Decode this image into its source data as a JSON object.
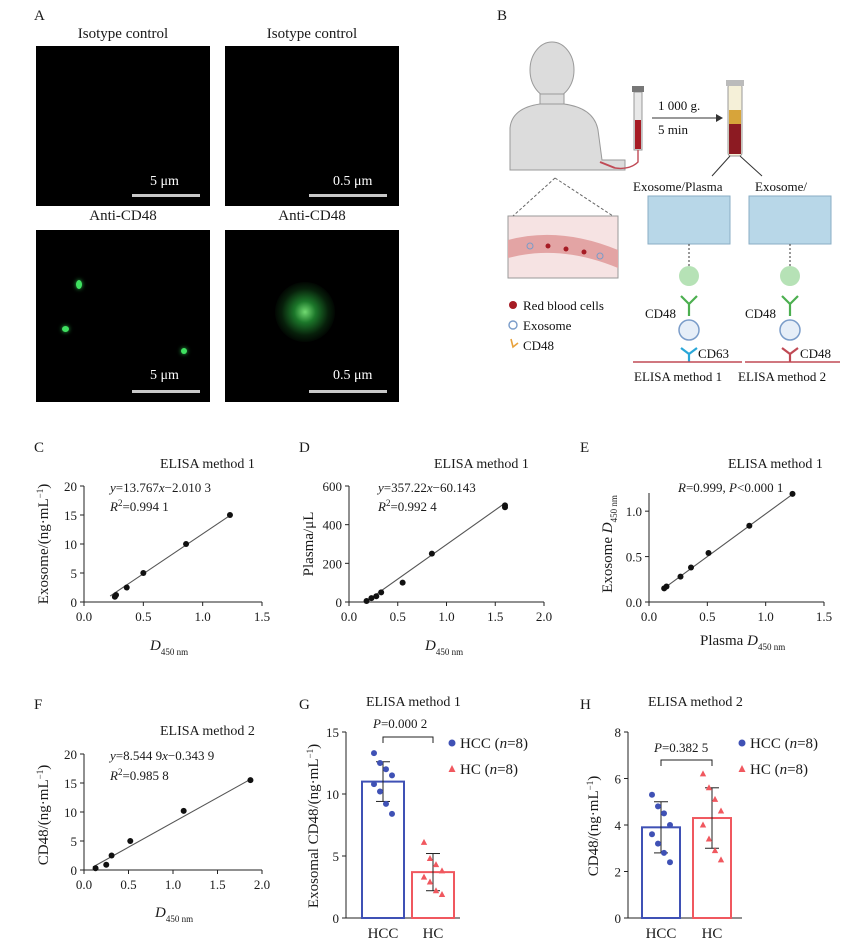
{
  "panels": {
    "A": "A",
    "B": "B",
    "C": "C",
    "D": "D",
    "E": "E",
    "F": "F",
    "G": "G",
    "H": "H"
  },
  "micrographs": {
    "titles": {
      "iso_left": "Isotype control",
      "iso_right": "Isotype control",
      "anti_left": "Anti-CD48",
      "anti_right": "Anti-CD48"
    },
    "scale_labels": {
      "iso_left": "5 μm",
      "iso_right": "0.5 μm",
      "anti_left": "5 μm",
      "anti_right": "0.5 μm"
    }
  },
  "schematic": {
    "centrifuge_speed": "1 000 g.",
    "centrifuge_time": "5 min",
    "branch_left": "Exosome/Plasma",
    "branch_right": "Exosome/",
    "legend_rbc": "Red blood cells",
    "legend_exosome": "Exosome",
    "legend_cd48": "CD48",
    "m1_capture": "CD48",
    "m1_detect": "CD63",
    "m2_capture": "CD48",
    "m2_detect": "CD48",
    "method1": "ELISA method 1",
    "method2": "ELISA method 2",
    "colors": {
      "vessel": "#e3a4a4",
      "rbc": "#a61b24",
      "plate": "#b8d7e8",
      "antibody": "#4caf50",
      "cd48": "#e8a23c",
      "line": "#c04a55"
    }
  },
  "chart_data": [
    {
      "id": "C",
      "type": "scatter",
      "title": "ELISA method 1",
      "equation": "y=13.767x−2.010 3",
      "r2": "R2=0.994 1",
      "ylabel": "Exosome/(ng·mL−1)",
      "xlabel": "D450 nm",
      "xlim": [
        0,
        1.5
      ],
      "ylim": [
        0,
        20
      ],
      "xticks": [
        "0.0",
        "0.5",
        "1.0",
        "1.5"
      ],
      "yticks": [
        "0",
        "5",
        "10",
        "15",
        "20"
      ],
      "x": [
        0.26,
        0.27,
        0.36,
        0.5,
        0.86,
        1.23
      ],
      "y": [
        0.9,
        1.2,
        2.5,
        5.0,
        10.0,
        15.0
      ],
      "fit": {
        "slope": 13.767,
        "intercept": -2.0103,
        "x_range": [
          0.22,
          1.24
        ]
      }
    },
    {
      "id": "D",
      "type": "scatter",
      "title": "ELISA method 1",
      "equation": "y=357.22x−60.143",
      "r2": "R2=0.992 4",
      "ylabel": "Plasma/μL",
      "xlabel": "D450 nm",
      "xlim": [
        0,
        2.0
      ],
      "ylim": [
        0,
        600
      ],
      "xticks": [
        "0.0",
        "0.5",
        "1.0",
        "1.5",
        "2.0"
      ],
      "yticks": [
        "0",
        "200",
        "400",
        "600"
      ],
      "x": [
        0.18,
        0.23,
        0.28,
        0.33,
        0.55,
        0.85,
        1.6,
        1.6
      ],
      "y": [
        5,
        20,
        30,
        50,
        100,
        250,
        490,
        500
      ],
      "fit": {
        "slope": 357.22,
        "intercept": -60.143,
        "x_range": [
          0.17,
          1.6
        ]
      }
    },
    {
      "id": "E",
      "type": "scatter",
      "title": "ELISA method 1",
      "stat": "R=0.999, P<0.000 1",
      "ylabel": "Exosome D450 nm",
      "xlabel": "Plasma D450 nm",
      "xlim": [
        0,
        1.5
      ],
      "ylim": [
        0,
        1.2
      ],
      "xticks": [
        "0.0",
        "0.5",
        "1.0",
        "1.5"
      ],
      "yticks": [
        "0.0",
        "0.5",
        "1.0"
      ],
      "x": [
        0.13,
        0.15,
        0.27,
        0.36,
        0.51,
        0.86,
        1.23
      ],
      "y": [
        0.15,
        0.17,
        0.28,
        0.38,
        0.54,
        0.84,
        1.19
      ],
      "fit": {
        "slope": 0.94,
        "intercept": 0.03,
        "x_range": [
          0.12,
          1.24
        ]
      }
    },
    {
      "id": "F",
      "type": "scatter",
      "title": "ELISA method 2",
      "equation": "y=8.544 9x−0.343 9",
      "r2": "R2=0.985 8",
      "ylabel": "CD48/(ng·mL−1)",
      "xlabel": "D450 nm",
      "xlim": [
        0,
        2.0
      ],
      "ylim": [
        0,
        20
      ],
      "xticks": [
        "0.0",
        "0.5",
        "1.0",
        "1.5",
        "2.0"
      ],
      "yticks": [
        "0",
        "5",
        "10",
        "15",
        "20"
      ],
      "x": [
        0.13,
        0.25,
        0.31,
        0.52,
        1.12,
        1.87
      ],
      "y": [
        0.3,
        0.9,
        2.5,
        5.0,
        10.2,
        15.5
      ],
      "fit": {
        "slope": 8.5449,
        "intercept": -0.3439,
        "x_range": [
          0.1,
          1.88
        ]
      }
    },
    {
      "id": "G",
      "type": "bar",
      "title": "ELISA method 1",
      "ylabel": "Exosomal CD48/(ng·mL−1)",
      "categories": [
        "HCC",
        "HC"
      ],
      "ylim": [
        0,
        15
      ],
      "yticks": [
        "0",
        "5",
        "10",
        "15"
      ],
      "pvalue": "P=0.000 2",
      "series": [
        {
          "name": "HCC (n=8)",
          "mean": 11.0,
          "sd": 1.6,
          "color": "#3f51b5",
          "marker": "circle",
          "points": [
            13.3,
            12.5,
            12.0,
            11.5,
            10.8,
            10.2,
            9.2,
            8.4
          ]
        },
        {
          "name": "HC (n=8)",
          "mean": 3.7,
          "sd": 1.5,
          "color": "#f0585f",
          "marker": "triangle",
          "points": [
            6.1,
            4.8,
            4.3,
            3.8,
            3.3,
            2.9,
            2.2,
            1.9
          ]
        }
      ]
    },
    {
      "id": "H",
      "type": "bar",
      "title": "ELISA method 2",
      "ylabel": "CD48/(ng·mL−1)",
      "categories": [
        "HCC",
        "HC"
      ],
      "ylim": [
        0,
        8
      ],
      "yticks": [
        "0",
        "2",
        "4",
        "6",
        "8"
      ],
      "pvalue": "P=0.382 5",
      "series": [
        {
          "name": "HCC (n=8)",
          "mean": 3.9,
          "sd": 1.1,
          "color": "#3f51b5",
          "marker": "circle",
          "points": [
            5.3,
            4.8,
            4.5,
            4.0,
            3.6,
            3.2,
            2.8,
            2.4
          ]
        },
        {
          "name": "HC (n=8)",
          "mean": 4.3,
          "sd": 1.3,
          "color": "#f0585f",
          "marker": "triangle",
          "points": [
            6.2,
            5.6,
            5.1,
            4.6,
            4.0,
            3.4,
            2.9,
            2.5
          ]
        }
      ]
    }
  ]
}
